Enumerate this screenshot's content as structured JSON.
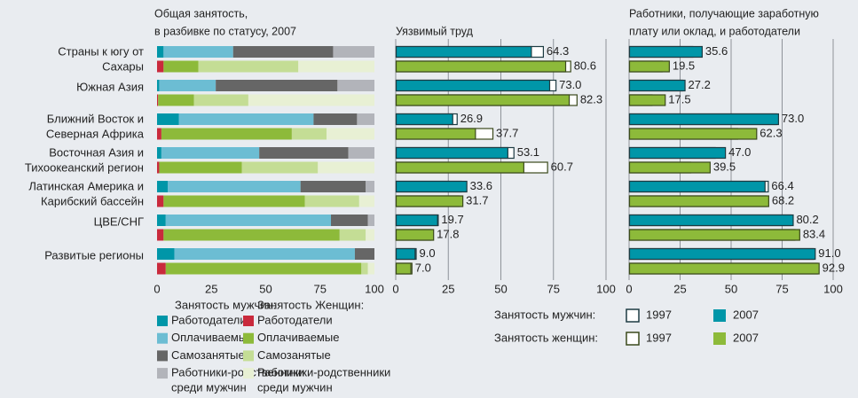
{
  "chart_data": [
    {
      "type": "stacked_bar",
      "title": [
        "Общая занятость,",
        "в разбивке по статусу, 2007"
      ],
      "categories": [
        [
          "Страны к югу от",
          "Сахары"
        ],
        [
          "Южная Азия"
        ],
        [
          "Ближний Восток и",
          "Северная Африка"
        ],
        [
          "Восточная Азия и",
          "Тихоокеанский регион"
        ],
        [
          "Латинская Америка и",
          "Карибский бассейн"
        ],
        [
          "ЦВЕ/СНГ"
        ],
        [
          "Развитые регионы"
        ]
      ],
      "xlim": [
        0,
        100
      ],
      "xticks": [
        0,
        25,
        50,
        75,
        100
      ],
      "grid": false,
      "groups": [
        {
          "name": "Занятость мужчин:",
          "series": [
            {
              "name": [
                "Работодатели"
              ],
              "color": "#0096a8",
              "values": [
                3,
                1,
                10,
                2,
                5,
                4,
                8
              ]
            },
            {
              "name": [
                "Оплачиваемые"
              ],
              "color": "#6cbdd3",
              "values": [
                32,
                26,
                62,
                45,
                61,
                76,
                83
              ]
            },
            {
              "name": [
                "Самозанятые"
              ],
              "color": "#666666",
              "values": [
                46,
                56,
                20,
                41,
                30,
                17,
                9
              ]
            },
            {
              "name": [
                "Работники-родственники",
                "среди мужчин"
              ],
              "color": "#b2b4ba",
              "values": [
                19,
                17,
                8,
                12,
                4,
                3,
                0
              ]
            }
          ]
        },
        {
          "name": "Занятость Женщин:",
          "series": [
            {
              "name": [
                "Работодатели"
              ],
              "color": "#c92a3c",
              "values": [
                3,
                0.5,
                2,
                1,
                3,
                3,
                4
              ]
            },
            {
              "name": [
                "Оплачиваемые"
              ],
              "color": "#8dba3a",
              "values": [
                16,
                16.5,
                60,
                38,
                65,
                81,
                90
              ]
            },
            {
              "name": [
                "Самозанятые"
              ],
              "color": "#c4dd95",
              "values": [
                46,
                25,
                16,
                35,
                25,
                12,
                3
              ]
            },
            {
              "name": [
                "Работники-родственники",
                "среди мужчин"
              ],
              "color": "#e8f0d4",
              "values": [
                35,
                58,
                22,
                26,
                7,
                4,
                3
              ]
            }
          ]
        }
      ]
    },
    {
      "type": "paired_bar",
      "title": [
        "Уязвимый труд"
      ],
      "xlim": [
        0,
        100
      ],
      "xticks": [
        0,
        25,
        50,
        75,
        100
      ],
      "grid": true,
      "groups": [
        {
          "name": "Занятость мужчин:",
          "series": [
            {
              "name": "1997",
              "color": "#ffffff",
              "values": [
                70,
                76,
                29,
                56,
                31,
                20,
                9.5
              ]
            },
            {
              "name": "2007",
              "color": "#0096a8",
              "values": [
                64.3,
                73.0,
                26.9,
                53.1,
                33.6,
                19.7,
                9.0
              ],
              "value_labels": [
                "64.3",
                "73.0",
                "26.9",
                "53.1",
                "33.6",
                "19.7",
                "9.0"
              ]
            }
          ]
        },
        {
          "name": "Занятость женщин:",
          "series": [
            {
              "name": "1997",
              "color": "#ffffff",
              "values": [
                83,
                86,
                46,
                72,
                30,
                16.5,
                7.5
              ]
            },
            {
              "name": "2007",
              "color": "#8dba3a",
              "values": [
                80.6,
                82.3,
                37.7,
                60.7,
                31.7,
                17.8,
                7.0
              ],
              "value_labels": [
                "80.6",
                "82.3",
                "37.7",
                "60.7",
                "31.7",
                "17.8",
                "7.0"
              ]
            }
          ]
        }
      ]
    },
    {
      "type": "paired_bar",
      "title": [
        "Работники, получающие заработную",
        "плату или оклад, и работодатели"
      ],
      "xlim": [
        0,
        100
      ],
      "xticks": [
        0,
        25,
        50,
        75,
        100
      ],
      "grid": true,
      "groups": [
        {
          "series": [
            {
              "color": "#ffffff",
              "values": [
                31,
                26,
                72,
                42,
                68,
                79,
                90
              ]
            },
            {
              "color": "#0096a8",
              "values": [
                35.6,
                27.2,
                73.0,
                47.0,
                66.4,
                80.2,
                91.0
              ],
              "value_labels": [
                "35.6",
                "27.2",
                "73.0",
                "47.0",
                "66.4",
                "80.2",
                "91.0"
              ]
            }
          ]
        },
        {
          "series": [
            {
              "color": "#ffffff",
              "values": [
                16,
                11,
                53,
                30,
                67,
                81,
                92
              ]
            },
            {
              "color": "#8dba3a",
              "values": [
                19.5,
                17.5,
                62.3,
                39.5,
                68.2,
                83.4,
                92.9
              ],
              "value_labels": [
                "19.5",
                "17.5",
                "62.3",
                "39.5",
                "68.2",
                "83.4",
                "92.9"
              ]
            }
          ]
        }
      ]
    }
  ]
}
